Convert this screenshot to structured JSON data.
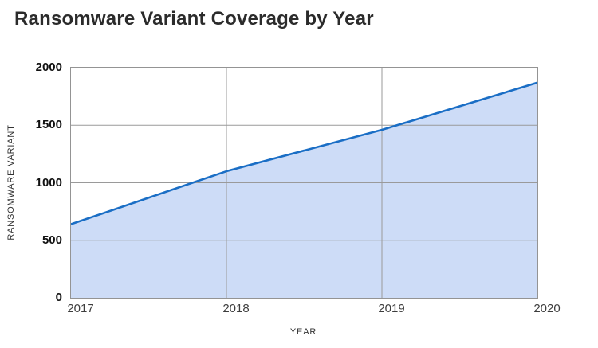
{
  "chart_data": {
    "type": "area",
    "title": "Ransomware Variant Coverage by Year",
    "xlabel": "YEAR",
    "ylabel": "RANSOMWARE VARIANT",
    "categories": [
      "2017",
      "2018",
      "2019",
      "2020"
    ],
    "values": [
      640,
      1100,
      1460,
      1870
    ],
    "ylim": [
      0,
      2000
    ],
    "y_ticks": [
      0,
      500,
      1000,
      1500,
      2000
    ],
    "grid": true,
    "legend": "none",
    "colors": {
      "line": "#1a6ec5",
      "fill": "#cddcf7",
      "grid": "#9a9a9a",
      "axis_border": "#949494",
      "title_text": "#2b2b2b",
      "y_tick_text": "#111111",
      "x_tick_text": "#3d3d3d",
      "axis_title_text": "#333333",
      "background": "#ffffff"
    }
  }
}
